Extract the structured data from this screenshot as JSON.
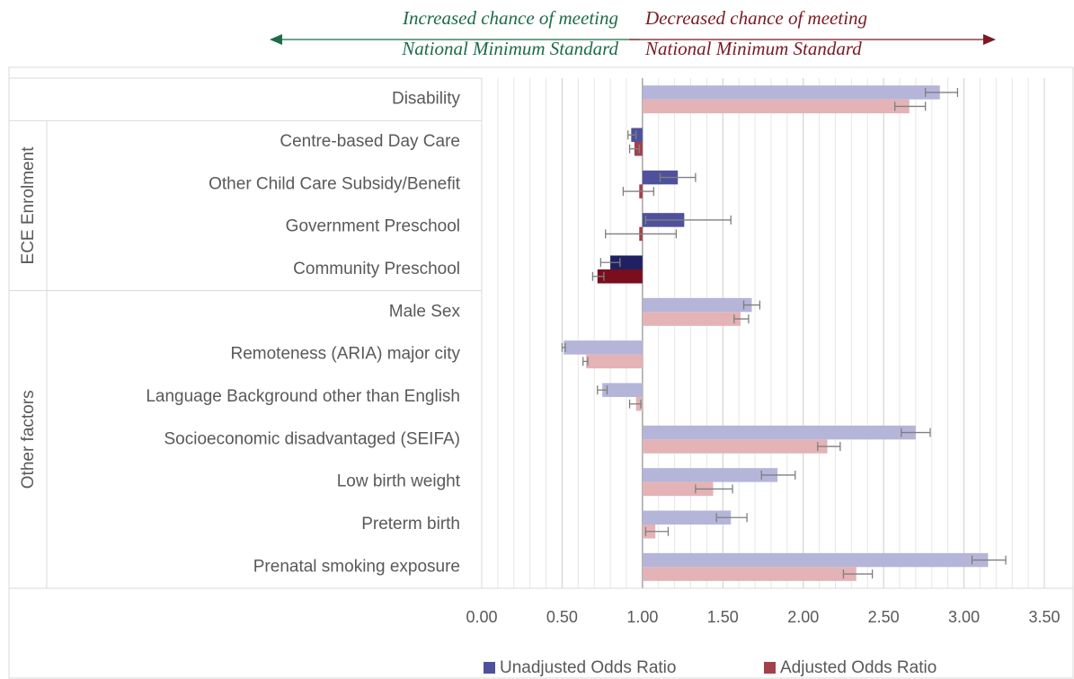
{
  "chart_data": {
    "type": "bar",
    "orientation": "horizontal",
    "baseline": 1,
    "categories": [
      "Disability",
      "Centre-based Day Care",
      "Other Child Care Subsidy/Benefit",
      "Government Preschool",
      "Community Preschool",
      "Male Sex",
      "Remoteness (ARIA) major city",
      "Language Background other than English",
      "Socioeconomic disadvantaged (SEIFA)",
      "Low birth weight",
      "Preterm birth",
      "Prenatal smoking exposure"
    ],
    "groups": [
      {
        "label": "ECE Enrolment",
        "first": 1,
        "last": 4
      },
      {
        "label": "Other factors",
        "first": 5,
        "last": 11
      }
    ],
    "series": [
      {
        "name": "Unadjusted Odds Ratio",
        "color": "#4f519c",
        "colors": [
          "#b4b5d8",
          "#4f519c",
          "#4f519c",
          "#4f519c",
          "#1f2163",
          "#b4b5d8",
          "#b4b5d8",
          "#b4b5d8",
          "#b4b5d8",
          "#b4b5d8",
          "#b4b5d8",
          "#b4b5d8"
        ],
        "values": [
          2.85,
          0.93,
          1.22,
          1.26,
          0.8,
          1.68,
          0.51,
          0.75,
          2.7,
          1.84,
          1.55,
          3.15
        ],
        "ci_lower": [
          2.76,
          0.91,
          1.11,
          1.02,
          0.74,
          1.63,
          0.5,
          0.72,
          2.61,
          1.74,
          1.46,
          3.05
        ],
        "ci_upper": [
          2.96,
          0.96,
          1.33,
          1.55,
          0.86,
          1.73,
          0.52,
          0.78,
          2.79,
          1.95,
          1.65,
          3.26
        ]
      },
      {
        "name": "Adjusted Odds Ratio",
        "color": "#a2414b",
        "colors": [
          "#e3b3b6",
          "#a2414b",
          "#a2414b",
          "#a2414b",
          "#7a0e1c",
          "#e3b3b6",
          "#e3b3b6",
          "#e3b3b6",
          "#e3b3b6",
          "#e3b3b6",
          "#e3b3b6",
          "#e3b3b6"
        ],
        "values": [
          2.66,
          0.95,
          0.98,
          0.98,
          0.72,
          1.61,
          0.65,
          0.96,
          2.15,
          1.44,
          1.08,
          2.33
        ],
        "ci_lower": [
          2.57,
          0.92,
          0.88,
          0.77,
          0.69,
          1.57,
          0.63,
          0.92,
          2.09,
          1.33,
          1.02,
          2.25
        ],
        "ci_upper": [
          2.76,
          0.98,
          1.07,
          1.21,
          0.76,
          1.66,
          0.66,
          0.99,
          2.23,
          1.56,
          1.16,
          2.43
        ]
      }
    ],
    "xlim": [
      0,
      3.5
    ],
    "xticks": [
      {
        "value": 0,
        "label": "0.00"
      },
      {
        "value": 0.5,
        "label": "0.50"
      },
      {
        "value": 1,
        "label": "1.00"
      },
      {
        "value": 1.5,
        "label": "1.50"
      },
      {
        "value": 2,
        "label": "2.00"
      },
      {
        "value": 2.5,
        "label": "2.50"
      },
      {
        "value": 3,
        "label": "3.00"
      },
      {
        "value": 3.5,
        "label": "3.50"
      }
    ],
    "minor_grid_step": 0.1,
    "grid": true,
    "legend": "bottom",
    "annotations": [
      {
        "lines": [
          "Increased chance of meeting",
          "National Minimum Standard"
        ],
        "color": "#1e6b4a",
        "direction": "left"
      },
      {
        "lines": [
          "Decreased chance of meeting",
          "National Minimum Standard"
        ],
        "color": "#7a1a22",
        "direction": "right"
      }
    ]
  }
}
